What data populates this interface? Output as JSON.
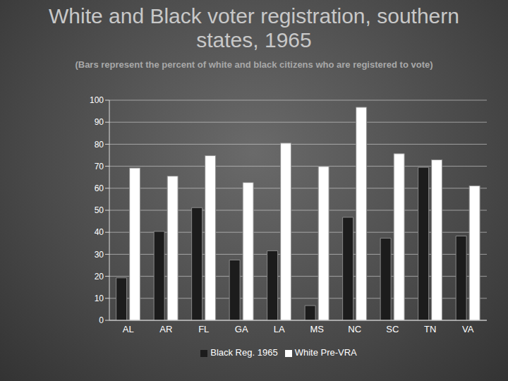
{
  "chart_data": {
    "type": "bar",
    "title": "White and Black voter registration, southern states, 1965",
    "subtitle": "(Bars represent the percent of white and black citizens who are registered to vote)",
    "categories": [
      "AL",
      "AR",
      "FL",
      "GA",
      "LA",
      "MS",
      "NC",
      "SC",
      "TN",
      "VA"
    ],
    "series": [
      {
        "name": "Black Reg. 1965",
        "color": "#1c1c1c",
        "values": [
          19.3,
          40.4,
          51.2,
          27.4,
          31.6,
          6.7,
          46.8,
          37.3,
          69.5,
          38.3
        ]
      },
      {
        "name": "White Pre-VRA",
        "color": "#ffffff",
        "values": [
          69.2,
          65.5,
          74.8,
          62.6,
          80.5,
          69.9,
          96.8,
          75.7,
          72.9,
          61.1
        ]
      }
    ],
    "ylim": [
      0,
      100
    ],
    "yticks": [
      0,
      10,
      20,
      30,
      40,
      50,
      60,
      70,
      80,
      90,
      100
    ],
    "grid": true,
    "legend": "bottom"
  }
}
